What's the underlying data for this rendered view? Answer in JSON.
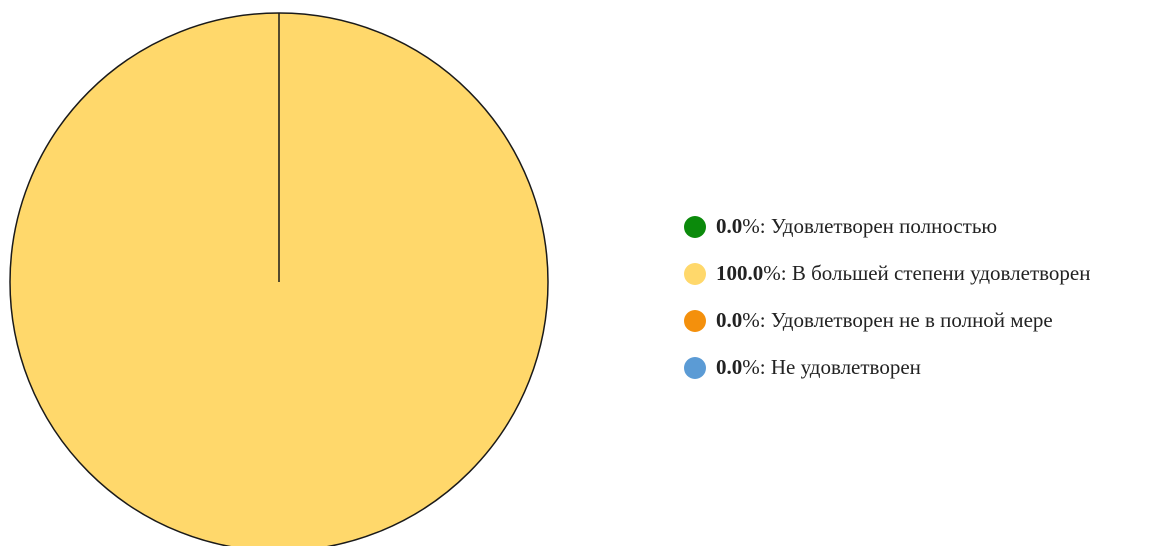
{
  "chart_data": {
    "type": "pie",
    "unit": "%",
    "slices": [
      {
        "label": "Удовлетворен полностью",
        "value": 0.0,
        "display": "0.0",
        "color": "#0b8a0b"
      },
      {
        "label": "В большей степени удовлетворен",
        "value": 100.0,
        "display": "100.0",
        "color": "#ffd86b"
      },
      {
        "label": "Удовлетворен не в полной мере",
        "value": 0.0,
        "display": "0.0",
        "color": "#f4900c"
      },
      {
        "label": "Не удовлетворен",
        "value": 0.0,
        "display": "0.0",
        "color": "#5b9bd5"
      }
    ],
    "legend_placement": "right"
  }
}
